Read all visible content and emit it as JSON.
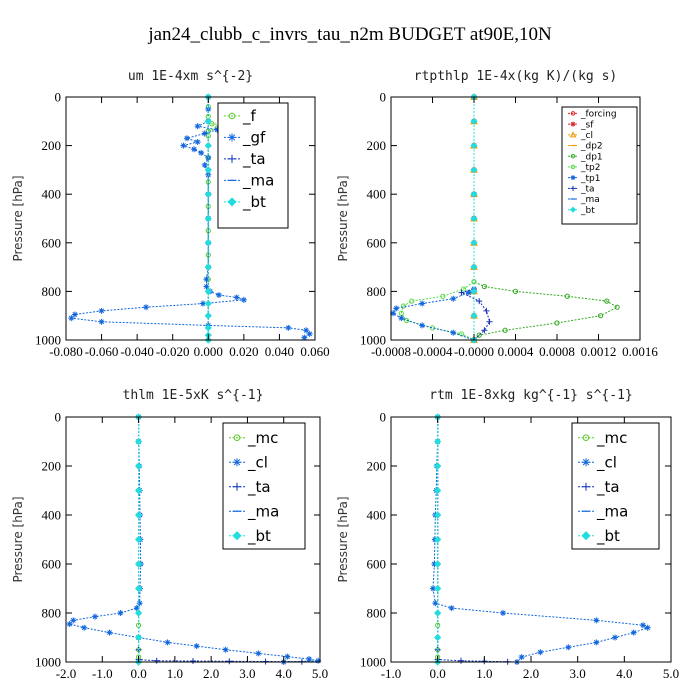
{
  "title": "jan24_clubb_c_invrs_tau_n2m  BUDGET at90E,10N",
  "chart_data": [
    {
      "type": "line",
      "title": "um  1E-4xm s^{-2}",
      "ylabel": "Pressure [hPa]",
      "xlim": [
        -0.08,
        0.06
      ],
      "ylim": [
        1000,
        0
      ],
      "xticks": [
        -0.08,
        -0.06,
        -0.04,
        -0.02,
        0.0,
        0.02,
        0.04,
        0.06
      ],
      "xtick_labels": [
        "-0.080",
        "-0.060",
        "-0.040",
        "-0.020",
        "0.000",
        "0.020",
        "0.040",
        "0.060"
      ],
      "yticks": [
        0,
        200,
        400,
        600,
        800,
        1000
      ],
      "ytick_labels": [
        "0",
        "200",
        "400",
        "600",
        "800",
        "1000"
      ],
      "legend": {
        "position": "top-right",
        "font_size": 15
      },
      "series": [
        {
          "name": "_f",
          "color": "#55cc22",
          "marker": "circle",
          "x": [
            0,
            0,
            0,
            0,
            0.002,
            0.012,
            0.005,
            0,
            0,
            0,
            0,
            0,
            0,
            0,
            0,
            0,
            0,
            0,
            0,
            0,
            0,
            0,
            0,
            0,
            0
          ],
          "y": [
            0,
            40,
            80,
            100,
            110,
            118,
            128,
            140,
            160,
            200,
            250,
            300,
            350,
            400,
            450,
            500,
            550,
            600,
            650,
            700,
            750,
            800,
            850,
            900,
            1000
          ]
        },
        {
          "name": "_gf",
          "color": "#1166dd",
          "marker": "star",
          "x": [
            0,
            0,
            0,
            -0.006,
            0.005,
            -0.002,
            -0.012,
            -0.006,
            -0.014,
            -0.008,
            -0.004,
            0.0,
            -0.002,
            0,
            0,
            0,
            0,
            0,
            -0.001,
            -0.001,
            0.001,
            0.006,
            0.016,
            0.02,
            -0.003,
            -0.035,
            -0.06,
            -0.075,
            -0.077,
            -0.06,
            0.0,
            0.045,
            0.055,
            0.057,
            0.054
          ],
          "y": [
            0,
            50,
            100,
            120,
            135,
            150,
            170,
            185,
            200,
            215,
            230,
            250,
            280,
            320,
            400,
            500,
            600,
            700,
            750,
            780,
            800,
            815,
            825,
            835,
            850,
            865,
            880,
            895,
            910,
            925,
            940,
            950,
            960,
            975,
            990
          ]
        },
        {
          "name": "_ta",
          "color": "#1133bb",
          "marker": "plus",
          "x": [
            0,
            0,
            0,
            0,
            0,
            0,
            0,
            0,
            0,
            0,
            0,
            0,
            0,
            0
          ],
          "y": [
            0,
            100,
            200,
            300,
            400,
            500,
            600,
            700,
            800,
            850,
            900,
            950,
            980,
            1000
          ]
        },
        {
          "name": "_ma",
          "color": "#1166dd",
          "marker": "dash",
          "x": [
            0,
            0,
            0,
            0,
            0,
            0,
            0,
            0,
            0,
            0,
            0,
            0,
            0,
            0
          ],
          "y": [
            0,
            100,
            200,
            300,
            400,
            500,
            600,
            700,
            800,
            850,
            900,
            950,
            980,
            1000
          ]
        },
        {
          "name": "_bt",
          "color": "#22dddd",
          "marker": "diamond",
          "x": [
            0,
            0,
            0,
            0,
            0,
            0,
            0,
            0,
            0,
            0,
            0,
            0,
            0,
            0
          ],
          "y": [
            0,
            100,
            200,
            300,
            400,
            500,
            600,
            700,
            800,
            850,
            900,
            950,
            980,
            1000
          ]
        }
      ]
    },
    {
      "type": "line",
      "title": "rtpthlp  1E-4x(kg K)/(kg s)",
      "ylabel": "Pressure [hPa]",
      "xlim": [
        -0.0008,
        0.0016
      ],
      "ylim": [
        1000,
        0
      ],
      "xticks": [
        -0.0008,
        -0.0004,
        0.0,
        0.0004,
        0.0008,
        0.0012,
        0.0016
      ],
      "xtick_labels": [
        "-0.0008",
        "-0.0004",
        "-0.0000",
        "0.0004",
        "0.0008",
        "0.0012",
        "0.0016"
      ],
      "yticks": [
        0,
        200,
        400,
        600,
        800,
        1000
      ],
      "ytick_labels": [
        "0",
        "200",
        "400",
        "600",
        "800",
        "1000"
      ],
      "legend": {
        "position": "top-right",
        "font_size": 9
      },
      "series": [
        {
          "name": "_forcing",
          "color": "#dd2222",
          "marker": "circle",
          "x": [
            0,
            0,
            0,
            0,
            0,
            0,
            0,
            0,
            0,
            0,
            0
          ],
          "y": [
            0,
            100,
            200,
            300,
            400,
            500,
            600,
            700,
            800,
            900,
            1000
          ]
        },
        {
          "name": "_sf",
          "color": "#dd2222",
          "marker": "star",
          "x": [
            0,
            0,
            0,
            0,
            0,
            0,
            0,
            0,
            0,
            0,
            0
          ],
          "y": [
            0,
            100,
            200,
            300,
            400,
            500,
            600,
            700,
            800,
            900,
            1000
          ]
        },
        {
          "name": "_cl",
          "color": "#ee9900",
          "marker": "triangle",
          "x": [
            0,
            0,
            0,
            0,
            0,
            0,
            0,
            0,
            0,
            0,
            0
          ],
          "y": [
            0,
            100,
            200,
            300,
            400,
            500,
            600,
            700,
            800,
            900,
            1000
          ]
        },
        {
          "name": "_dp2",
          "color": "#ee9900",
          "marker": "dash",
          "x": [
            0,
            0,
            0,
            0,
            0,
            0,
            0,
            0,
            0,
            0,
            0
          ],
          "y": [
            0,
            100,
            200,
            300,
            400,
            500,
            600,
            700,
            800,
            900,
            1000
          ]
        },
        {
          "name": "_dp1",
          "color": "#33aa22",
          "marker": "circle",
          "x": [
            0,
            0,
            0,
            0,
            0.0001,
            0.0004,
            0.0009,
            0.00128,
            0.00138,
            0.00122,
            0.0008,
            0.0003,
            5e-05,
            0
          ],
          "y": [
            0,
            400,
            700,
            760,
            780,
            800,
            820,
            840,
            865,
            900,
            930,
            960,
            980,
            1000
          ]
        },
        {
          "name": "_tp2",
          "color": "#55dd44",
          "marker": "circle",
          "x": [
            0,
            0,
            0,
            -0.0001,
            -0.0003,
            -0.0006,
            -0.00068,
            -0.0007,
            -0.00065,
            -0.0004,
            -0.00012,
            0
          ],
          "y": [
            0,
            400,
            760,
            790,
            820,
            840,
            860,
            890,
            920,
            950,
            975,
            1000
          ]
        },
        {
          "name": "_tp1",
          "color": "#1166dd",
          "marker": "star",
          "x": [
            0,
            0,
            0,
            -5e-05,
            -0.0002,
            -0.0005,
            -0.00075,
            -0.00078,
            -0.0007,
            -0.0005,
            -0.0002,
            0
          ],
          "y": [
            0,
            400,
            790,
            805,
            830,
            850,
            870,
            890,
            910,
            940,
            970,
            1000
          ]
        },
        {
          "name": "_ta",
          "color": "#1133bb",
          "marker": "plus",
          "x": [
            0,
            0,
            0,
            -0.00012,
            5e-05,
            0.00012,
            0.00015,
            0.0001,
            0
          ],
          "y": [
            0,
            400,
            790,
            805,
            840,
            880,
            925,
            960,
            1000
          ]
        },
        {
          "name": "_ma",
          "color": "#1166dd",
          "marker": "dash",
          "x": [
            0,
            0,
            0,
            0,
            0,
            0,
            0,
            0,
            0,
            0,
            0
          ],
          "y": [
            0,
            100,
            200,
            300,
            400,
            500,
            600,
            700,
            800,
            900,
            1000
          ]
        },
        {
          "name": "_bt",
          "color": "#22dddd",
          "marker": "diamond",
          "x": [
            0,
            0,
            0,
            0,
            0,
            0,
            0,
            0,
            0,
            0,
            0
          ],
          "y": [
            0,
            100,
            200,
            300,
            400,
            500,
            600,
            700,
            800,
            900,
            1000
          ]
        }
      ]
    },
    {
      "type": "line",
      "title": "thlm  1E-5xK s^{-1}",
      "ylabel": "Pressure [hPa]",
      "xlim": [
        -2.0,
        5.0
      ],
      "ylim": [
        1000,
        0
      ],
      "xticks": [
        -2,
        -1,
        0,
        1,
        2,
        3,
        4,
        5
      ],
      "xtick_labels": [
        "-2.0",
        "-1.0",
        "0.0",
        "1.0",
        "2.0",
        "3.0",
        "4.0",
        "5.0"
      ],
      "yticks": [
        0,
        200,
        400,
        600,
        800,
        1000
      ],
      "ytick_labels": [
        "0",
        "200",
        "400",
        "600",
        "800",
        "1000"
      ],
      "legend": {
        "position": "top-right",
        "font_size": 15
      },
      "series": [
        {
          "name": "_mc",
          "color": "#55cc22",
          "marker": "circle",
          "x": [
            0,
            0,
            0,
            0,
            0,
            0,
            0,
            0,
            0,
            0,
            0,
            0,
            0,
            0
          ],
          "y": [
            0,
            100,
            200,
            300,
            400,
            500,
            600,
            700,
            800,
            850,
            900,
            950,
            980,
            1000
          ]
        },
        {
          "name": "_cl",
          "color": "#1166dd",
          "marker": "star",
          "x": [
            0,
            0,
            0.02,
            0.03,
            0.04,
            0.05,
            0.06,
            0.04,
            0.03,
            -0.05,
            -0.5,
            -1.2,
            -1.8,
            -1.9,
            -1.5,
            -0.8,
            0.0,
            0.8,
            1.6,
            2.4,
            3.3,
            4.1,
            4.7,
            4.95,
            4.0
          ],
          "y": [
            0,
            100,
            200,
            300,
            400,
            500,
            600,
            700,
            760,
            780,
            800,
            815,
            830,
            845,
            860,
            880,
            900,
            920,
            935,
            950,
            965,
            978,
            988,
            995,
            1000
          ]
        },
        {
          "name": "_ta",
          "color": "#1133bb",
          "marker": "plus",
          "x": [
            0,
            0,
            0,
            0,
            0,
            0,
            0,
            0,
            0.5,
            1.5,
            2.5,
            3.5,
            4.5
          ],
          "y": [
            0,
            200,
            400,
            600,
            800,
            900,
            950,
            990,
            995,
            996,
            997,
            998,
            999
          ]
        },
        {
          "name": "_ma",
          "color": "#1166dd",
          "marker": "dash",
          "x": [
            0,
            0,
            0,
            0,
            0,
            0,
            0,
            0,
            0,
            0,
            0
          ],
          "y": [
            0,
            100,
            200,
            300,
            400,
            500,
            600,
            700,
            800,
            900,
            1000
          ]
        },
        {
          "name": "_bt",
          "color": "#22dddd",
          "marker": "diamond",
          "x": [
            0,
            0,
            0,
            0,
            0,
            0,
            0,
            0,
            0,
            0,
            0
          ],
          "y": [
            0,
            100,
            200,
            300,
            400,
            500,
            600,
            700,
            800,
            900,
            1000
          ]
        }
      ]
    },
    {
      "type": "line",
      "title": "rtm  1E-8xkg kg^{-1} s^{-1}",
      "ylabel": "Pressure [hPa]",
      "xlim": [
        -1.0,
        5.0
      ],
      "ylim": [
        1000,
        0
      ],
      "xticks": [
        -1,
        0,
        1,
        2,
        3,
        4,
        5
      ],
      "xtick_labels": [
        "-1.0",
        "0.0",
        "1.0",
        "2.0",
        "3.0",
        "4.0",
        "5.0"
      ],
      "yticks": [
        0,
        200,
        400,
        600,
        800,
        1000
      ],
      "ytick_labels": [
        "0",
        "200",
        "400",
        "600",
        "800",
        "1000"
      ],
      "legend": {
        "position": "top-right",
        "font_size": 15
      },
      "series": [
        {
          "name": "_mc",
          "color": "#55cc22",
          "marker": "circle",
          "x": [
            0,
            0,
            0,
            0,
            0,
            0,
            0,
            0,
            0,
            0,
            0,
            0,
            0,
            0
          ],
          "y": [
            0,
            100,
            200,
            300,
            400,
            500,
            600,
            700,
            800,
            850,
            900,
            950,
            980,
            1000
          ]
        },
        {
          "name": "_cl",
          "color": "#1166dd",
          "marker": "star",
          "x": [
            0,
            0,
            -0.02,
            -0.03,
            -0.05,
            -0.06,
            -0.07,
            -0.1,
            -0.05,
            0.3,
            1.4,
            3.4,
            4.4,
            4.5,
            4.2,
            3.8,
            3.4,
            2.8,
            2.2,
            1.8,
            1.7
          ],
          "y": [
            0,
            100,
            200,
            300,
            400,
            500,
            600,
            700,
            760,
            780,
            800,
            830,
            850,
            860,
            880,
            900,
            920,
            940,
            960,
            980,
            1000
          ]
        },
        {
          "name": "_ta",
          "color": "#1133bb",
          "marker": "plus",
          "x": [
            0,
            0,
            0,
            0,
            0,
            0,
            0,
            0,
            0.5,
            1.0,
            1.5
          ],
          "y": [
            0,
            200,
            400,
            600,
            800,
            900,
            950,
            990,
            995,
            997,
            999
          ]
        },
        {
          "name": "_ma",
          "color": "#1166dd",
          "marker": "dash",
          "x": [
            0,
            0,
            0,
            0,
            0,
            0,
            0,
            0,
            0,
            0,
            0
          ],
          "y": [
            0,
            100,
            200,
            300,
            400,
            500,
            600,
            700,
            800,
            900,
            1000
          ]
        },
        {
          "name": "_bt",
          "color": "#22dddd",
          "marker": "diamond",
          "x": [
            0,
            0,
            0,
            0,
            0,
            0,
            0,
            0,
            0,
            0,
            0
          ],
          "y": [
            0,
            100,
            200,
            300,
            400,
            500,
            600,
            700,
            800,
            900,
            1000
          ]
        }
      ]
    }
  ]
}
